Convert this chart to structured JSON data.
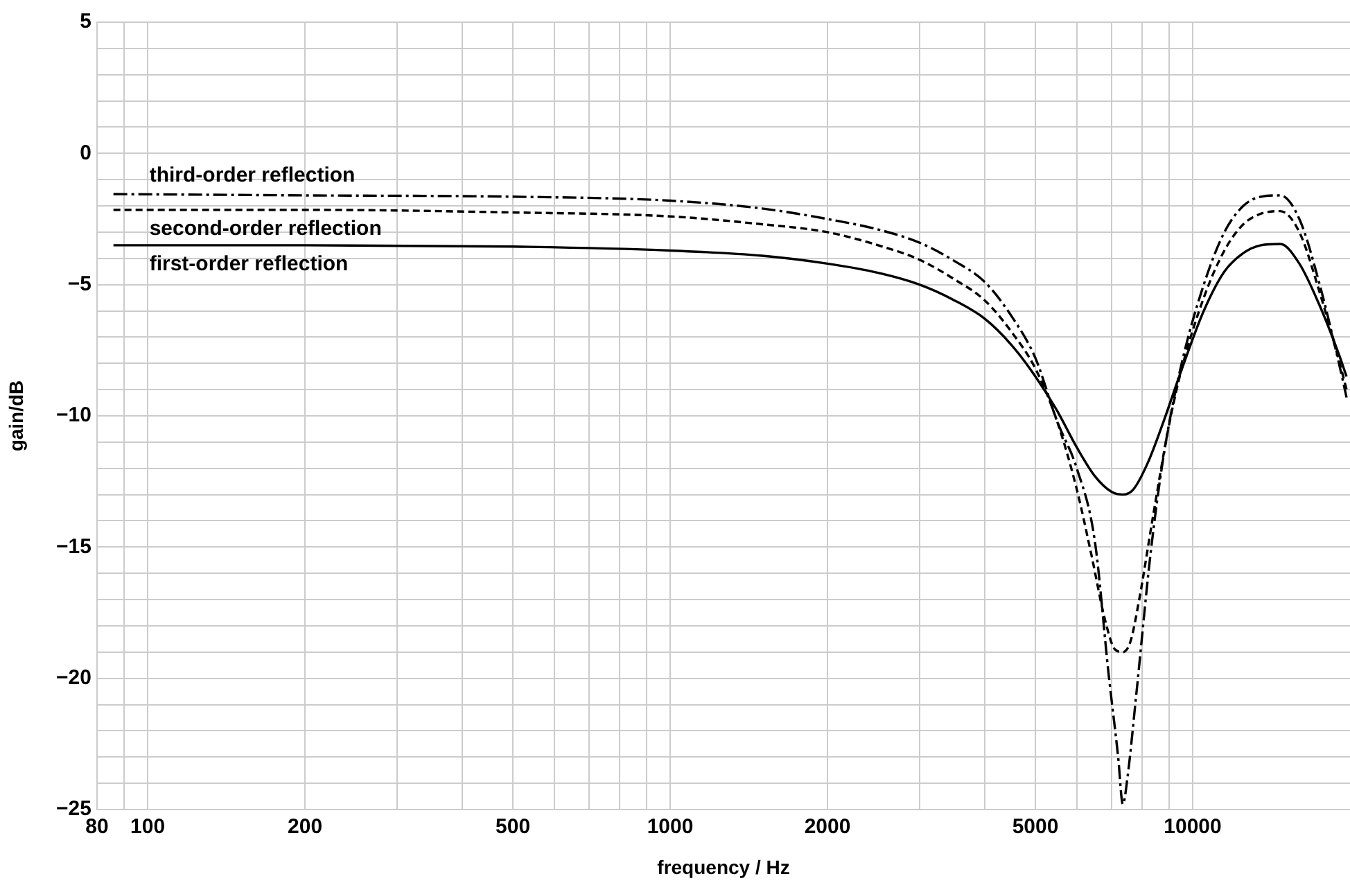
{
  "chart_data": {
    "type": "line",
    "xlabel": "frequency / Hz",
    "ylabel": "gain/dB",
    "log": "x",
    "grid": true,
    "legend": false,
    "marker": "none",
    "xlim": [
      80,
      20000
    ],
    "ylim": [
      -25,
      5
    ],
    "xticks": [
      80,
      {
        "value": 90,
        "label": null
      },
      100,
      200,
      {
        "value": 300,
        "label": null
      },
      {
        "value": 400,
        "label": null
      },
      500,
      {
        "value": 600,
        "label": null
      },
      {
        "value": 700,
        "label": null
      },
      {
        "value": 800,
        "label": null
      },
      {
        "value": 900,
        "label": null
      },
      1000,
      2000,
      {
        "value": 3000,
        "label": null
      },
      {
        "value": 4000,
        "label": null
      },
      5000,
      {
        "value": 6000,
        "label": null
      },
      {
        "value": 7000,
        "label": null
      },
      {
        "value": 8000,
        "label": null
      },
      {
        "value": 9000,
        "label": null
      },
      10000
    ],
    "yticks": [
      {
        "value": -25,
        "label": "−25"
      },
      {
        "value": -24,
        "label": null
      },
      {
        "value": -23,
        "label": null
      },
      {
        "value": -22,
        "label": null
      },
      {
        "value": -21,
        "label": null
      },
      {
        "value": -20,
        "label": "−20"
      },
      {
        "value": -19,
        "label": null
      },
      {
        "value": -18,
        "label": null
      },
      {
        "value": -17,
        "label": null
      },
      {
        "value": -16,
        "label": null
      },
      {
        "value": -15,
        "label": "−15"
      },
      {
        "value": -14,
        "label": null
      },
      {
        "value": -13,
        "label": null
      },
      {
        "value": -12,
        "label": null
      },
      {
        "value": -11,
        "label": null
      },
      {
        "value": -10,
        "label": "−10"
      },
      {
        "value": -9,
        "label": null
      },
      {
        "value": -8,
        "label": null
      },
      {
        "value": -7,
        "label": null
      },
      {
        "value": -6,
        "label": null
      },
      {
        "value": -5,
        "label": "−5"
      },
      {
        "value": -4,
        "label": null
      },
      {
        "value": -3,
        "label": null
      },
      {
        "value": -2,
        "label": null
      },
      {
        "value": -1,
        "label": null
      },
      0,
      {
        "value": 1,
        "label": null
      },
      {
        "value": 2,
        "label": null
      },
      {
        "value": 3,
        "label": null
      },
      {
        "value": 4,
        "label": null
      },
      5
    ],
    "series": [
      {
        "name": "third-order reflection",
        "color": "#000000",
        "line_style": "dashdot",
        "x": [
          86,
          200,
          500,
          1000,
          1500,
          2000,
          2500,
          3000,
          3500,
          4000,
          4500,
          5000,
          5500,
          6000,
          6500,
          6900,
          7200,
          7350,
          7500,
          7800,
          8300,
          8800,
          9500,
          10500,
          11500,
          12500,
          13500,
          14700,
          16000,
          17500,
          19000,
          19700
        ],
        "values": [
          -1.55,
          -1.6,
          -1.65,
          -1.8,
          -2.1,
          -2.5,
          -2.9,
          -3.4,
          -4.1,
          -4.9,
          -6.2,
          -7.8,
          -10.2,
          -12.0,
          -14.8,
          -19.8,
          -23.0,
          -24.8,
          -23.8,
          -20.6,
          -15.3,
          -11.5,
          -8.1,
          -5.0,
          -3.0,
          -2.0,
          -1.65,
          -1.6,
          -2.5,
          -5.0,
          -7.9,
          -9.3
        ]
      },
      {
        "name": "second-order reflection",
        "color": "#000000",
        "line_style": "dashed",
        "x": [
          86,
          200,
          500,
          1000,
          1500,
          2000,
          2500,
          3000,
          3500,
          4000,
          4500,
          5000,
          5500,
          6000,
          6400,
          6800,
          7100,
          7350,
          7600,
          7900,
          8400,
          9000,
          9500,
          10500,
          11500,
          12500,
          13500,
          14700,
          16000,
          17500,
          19000,
          19700
        ],
        "values": [
          -2.15,
          -2.15,
          -2.25,
          -2.4,
          -2.7,
          -3.0,
          -3.5,
          -4.05,
          -4.8,
          -5.6,
          -6.8,
          -8.2,
          -10.2,
          -12.8,
          -15.3,
          -17.8,
          -18.9,
          -19.0,
          -18.6,
          -17.0,
          -13.8,
          -10.4,
          -8.3,
          -5.5,
          -3.7,
          -2.7,
          -2.3,
          -2.2,
          -3.0,
          -5.3,
          -7.8,
          -9.0
        ]
      },
      {
        "name": "first-order reflection",
        "color": "#000000",
        "line_style": "solid",
        "x": [
          86,
          200,
          500,
          1000,
          1500,
          2000,
          2500,
          3000,
          3500,
          4000,
          4500,
          5000,
          5500,
          6000,
          6500,
          7000,
          7350,
          7700,
          8200,
          8800,
          9500,
          10500,
          11500,
          12500,
          13500,
          14700,
          16000,
          17500,
          19000,
          19700
        ],
        "values": [
          -3.5,
          -3.5,
          -3.55,
          -3.7,
          -3.9,
          -4.2,
          -4.55,
          -5.0,
          -5.6,
          -6.3,
          -7.3,
          -8.5,
          -9.8,
          -11.2,
          -12.3,
          -12.9,
          -13.0,
          -12.8,
          -11.8,
          -10.2,
          -8.3,
          -6.0,
          -4.5,
          -3.8,
          -3.5,
          -3.45,
          -4.2,
          -5.8,
          -7.6,
          -8.5
        ]
      }
    ]
  }
}
